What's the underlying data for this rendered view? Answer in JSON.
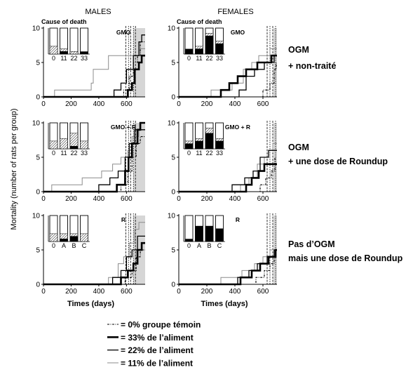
{
  "figure": {
    "column_headers": [
      "MALES",
      "FEMALES"
    ],
    "y_axis_label": "Mortality (number of rats per group)",
    "row_annotations": [
      {
        "line1": "OGM",
        "line2": "+ non-traité"
      },
      {
        "line1": "OGM",
        "line2": "+ une dose de Roundup"
      },
      {
        "line1": "Pas d’OGM",
        "line2": "mais une dose de Roundup"
      }
    ],
    "colors": {
      "shading": "#d6d6d6",
      "axis": "#000000"
    }
  },
  "legend": [
    {
      "dose_percent": 0,
      "label": "= 0% groupe témoin",
      "color": "#000000"
    },
    {
      "dose_percent": 33,
      "label": "= 33% de l’aliment",
      "color": "#000000"
    },
    {
      "dose_percent": 22,
      "label": "= 22% de l’aliment",
      "color": "#000000"
    },
    {
      "dose_percent": 11,
      "label": "= 11% de l’aliment",
      "color": "#8c8c8c"
    }
  ],
  "chart_data": [
    {
      "type": "line",
      "label": "GMO",
      "xlim": [
        0,
        735
      ],
      "ylim": [
        0,
        10
      ],
      "xticks": [
        0,
        200,
        400,
        600
      ],
      "yticks": [
        0,
        5,
        10
      ],
      "reference_lines": [
        595,
        615,
        630,
        650,
        665
      ],
      "shaded_range": [
        650,
        735
      ],
      "series": [
        {
          "dose_percent": 0,
          "steps": [
            [
              580,
              1
            ],
            [
              620,
              3
            ],
            [
              650,
              5
            ],
            [
              680,
              6
            ],
            [
              700,
              8
            ]
          ]
        },
        {
          "dose_percent": 33,
          "steps": [
            [
              610,
              1
            ],
            [
              640,
              2
            ],
            [
              660,
              4
            ],
            [
              690,
              5
            ],
            [
              710,
              6
            ]
          ]
        },
        {
          "dose_percent": 22,
          "steps": [
            [
              510,
              1
            ],
            [
              560,
              2
            ],
            [
              600,
              4
            ],
            [
              650,
              6
            ],
            [
              690,
              8
            ],
            [
              710,
              9
            ]
          ]
        },
        {
          "dose_percent": 11,
          "steps": [
            [
              80,
              1
            ],
            [
              345,
              2
            ],
            [
              360,
              4
            ],
            [
              470,
              6
            ],
            [
              700,
              7
            ]
          ]
        }
      ],
      "inset": {
        "type": "bar",
        "title": "Cause of death",
        "categories": [
          "0",
          "11",
          "22",
          "33"
        ],
        "ylim": [
          0,
          10
        ],
        "total": [
          10,
          10,
          10,
          10
        ],
        "solid": [
          0,
          1,
          0,
          1
        ],
        "hatched": [
          3,
          1,
          1,
          0
        ]
      }
    },
    {
      "type": "line",
      "label": "GMO",
      "xlim": [
        0,
        700
      ],
      "ylim": [
        0,
        10
      ],
      "xticks": [
        0,
        200,
        400,
        600
      ],
      "yticks": [
        0,
        5,
        10
      ],
      "reference_lines": [
        630,
        650,
        670,
        690
      ],
      "shaded_range": [
        675,
        700
      ],
      "series": [
        {
          "dose_percent": 0,
          "steps": [
            [
              600,
              1
            ],
            [
              650,
              2
            ],
            [
              680,
              4
            ],
            [
              695,
              5
            ]
          ]
        },
        {
          "dose_percent": 33,
          "steps": [
            [
              300,
              1
            ],
            [
              360,
              2
            ],
            [
              420,
              3
            ],
            [
              480,
              4
            ],
            [
              560,
              5
            ],
            [
              660,
              6
            ]
          ]
        },
        {
          "dose_percent": 22,
          "steps": [
            [
              430,
              1
            ],
            [
              480,
              3
            ],
            [
              540,
              4
            ],
            [
              610,
              5
            ],
            [
              680,
              6
            ]
          ]
        },
        {
          "dose_percent": 11,
          "steps": [
            [
              230,
              1
            ],
            [
              380,
              2
            ],
            [
              460,
              4
            ],
            [
              520,
              5
            ],
            [
              570,
              6
            ],
            [
              650,
              7
            ]
          ]
        }
      ],
      "inset": {
        "type": "bar",
        "title": "Cause of death",
        "categories": [
          "0",
          "11",
          "22",
          "33"
        ],
        "ylim": [
          0,
          10
        ],
        "total": [
          10,
          10,
          10,
          10
        ],
        "solid": [
          2,
          2,
          7,
          4
        ],
        "hatched": [
          0,
          1,
          1,
          1
        ]
      }
    },
    {
      "type": "line",
      "label": "GMO + R",
      "xlim": [
        0,
        735
      ],
      "ylim": [
        0,
        10
      ],
      "xticks": [
        0,
        200,
        400,
        600
      ],
      "yticks": [
        0,
        5,
        10
      ],
      "reference_lines": [
        595,
        615,
        630,
        650,
        665
      ],
      "shaded_range": [
        650,
        735
      ],
      "series": [
        {
          "dose_percent": 0,
          "steps": [
            [
              560,
              1
            ],
            [
              610,
              3
            ],
            [
              640,
              5
            ],
            [
              670,
              7
            ],
            [
              700,
              8
            ]
          ]
        },
        {
          "dose_percent": 33,
          "steps": [
            [
              530,
              1
            ],
            [
              590,
              3
            ],
            [
              615,
              5
            ],
            [
              640,
              7
            ],
            [
              680,
              9
            ],
            [
              700,
              10
            ]
          ]
        },
        {
          "dose_percent": 22,
          "steps": [
            [
              400,
              1
            ],
            [
              480,
              2
            ],
            [
              540,
              3
            ],
            [
              590,
              5
            ],
            [
              620,
              7
            ],
            [
              660,
              9
            ]
          ]
        },
        {
          "dose_percent": 11,
          "steps": [
            [
              60,
              1
            ],
            [
              280,
              2
            ],
            [
              420,
              3
            ],
            [
              500,
              4
            ],
            [
              560,
              5
            ],
            [
              610,
              6
            ],
            [
              640,
              8
            ],
            [
              690,
              9
            ]
          ]
        }
      ],
      "inset": {
        "type": "bar",
        "categories": [
          "0",
          "11",
          "22",
          "33"
        ],
        "ylim": [
          0,
          10
        ],
        "total": [
          10,
          10,
          10,
          10
        ],
        "solid": [
          0,
          0,
          1,
          0
        ],
        "hatched": [
          3,
          4,
          5,
          3
        ]
      }
    },
    {
      "type": "line",
      "label": "GMO + R",
      "xlim": [
        0,
        700
      ],
      "ylim": [
        0,
        10
      ],
      "xticks": [
        0,
        200,
        400,
        600
      ],
      "yticks": [
        0,
        5,
        10
      ],
      "reference_lines": [
        630,
        650,
        670,
        690
      ],
      "shaded_range": [
        675,
        700
      ],
      "series": [
        {
          "dose_percent": 0,
          "steps": [
            [
              580,
              1
            ],
            [
              620,
              2
            ],
            [
              660,
              3
            ],
            [
              685,
              5
            ]
          ]
        },
        {
          "dose_percent": 33,
          "steps": [
            [
              480,
              1
            ],
            [
              520,
              2
            ],
            [
              570,
              3
            ],
            [
              610,
              4
            ]
          ]
        },
        {
          "dose_percent": 22,
          "steps": [
            [
              380,
              1
            ],
            [
              470,
              2
            ],
            [
              530,
              3
            ],
            [
              580,
              5
            ],
            [
              640,
              6
            ]
          ]
        },
        {
          "dose_percent": 11,
          "steps": [
            [
              440,
              1
            ],
            [
              500,
              2
            ],
            [
              560,
              4
            ],
            [
              610,
              5
            ],
            [
              640,
              6
            ],
            [
              670,
              7
            ]
          ]
        }
      ],
      "inset": {
        "type": "bar",
        "categories": [
          "0",
          "11",
          "22",
          "33"
        ],
        "ylim": [
          0,
          10
        ],
        "total": [
          10,
          10,
          10,
          10
        ],
        "solid": [
          2,
          3,
          6,
          3
        ],
        "hatched": [
          1,
          1,
          2,
          1
        ]
      }
    },
    {
      "type": "line",
      "label": "R",
      "xlabel": "Times (days)",
      "xlim": [
        0,
        735
      ],
      "ylim": [
        0,
        10
      ],
      "xticks": [
        0,
        200,
        400,
        600
      ],
      "yticks": [
        0,
        5,
        10
      ],
      "reference_lines": [
        595,
        615,
        630,
        650,
        665
      ],
      "shaded_range": [
        650,
        735
      ],
      "series": [
        {
          "dose_percent": 0,
          "steps": [
            [
              590,
              1
            ],
            [
              640,
              2
            ],
            [
              670,
              4
            ],
            [
              700,
              5
            ]
          ]
        },
        {
          "dose_percent": 33,
          "steps": [
            [
              560,
              1
            ],
            [
              610,
              2
            ],
            [
              650,
              3
            ],
            [
              680,
              5
            ],
            [
              710,
              6
            ]
          ]
        },
        {
          "dose_percent": 22,
          "steps": [
            [
              500,
              1
            ],
            [
              560,
              2
            ],
            [
              600,
              4
            ],
            [
              640,
              5
            ],
            [
              680,
              7
            ]
          ]
        },
        {
          "dose_percent": 11,
          "steps": [
            [
              470,
              1
            ],
            [
              540,
              3
            ],
            [
              580,
              4
            ],
            [
              620,
              6
            ],
            [
              660,
              8
            ],
            [
              690,
              9
            ]
          ]
        }
      ],
      "inset": {
        "type": "bar",
        "categories": [
          "0",
          "A",
          "B",
          "C"
        ],
        "ylim": [
          0,
          10
        ],
        "total": [
          10,
          10,
          10,
          10
        ],
        "solid": [
          0,
          1,
          2,
          0
        ],
        "hatched": [
          3,
          2,
          1,
          3
        ]
      }
    },
    {
      "type": "line",
      "label": "R",
      "xlabel": "Times (days)",
      "xlim": [
        0,
        700
      ],
      "ylim": [
        0,
        10
      ],
      "xticks": [
        0,
        200,
        400,
        600
      ],
      "yticks": [
        0,
        5,
        10
      ],
      "reference_lines": [
        630,
        650,
        670,
        690
      ],
      "shaded_range": [
        675,
        700
      ],
      "series": [
        {
          "dose_percent": 0,
          "steps": [
            [
              550,
              1
            ],
            [
              610,
              2
            ],
            [
              650,
              3
            ],
            [
              680,
              4
            ]
          ]
        },
        {
          "dose_percent": 33,
          "steps": [
            [
              440,
              1
            ],
            [
              520,
              2
            ],
            [
              580,
              3
            ],
            [
              640,
              4
            ],
            [
              690,
              5
            ]
          ]
        },
        {
          "dose_percent": 22,
          "steps": [
            [
              420,
              1
            ],
            [
              500,
              2
            ],
            [
              560,
              3
            ],
            [
              630,
              4
            ],
            [
              680,
              5
            ]
          ]
        },
        {
          "dose_percent": 11,
          "steps": [
            [
              300,
              1
            ],
            [
              450,
              2
            ],
            [
              540,
              3
            ],
            [
              600,
              4
            ],
            [
              650,
              5
            ]
          ]
        }
      ],
      "inset": {
        "type": "bar",
        "categories": [
          "0",
          "A",
          "B",
          "C"
        ],
        "ylim": [
          0,
          10
        ],
        "total": [
          10,
          10,
          10,
          10
        ],
        "solid": [
          1,
          6,
          6,
          5
        ],
        "hatched": [
          0,
          0,
          0,
          0
        ]
      }
    }
  ]
}
